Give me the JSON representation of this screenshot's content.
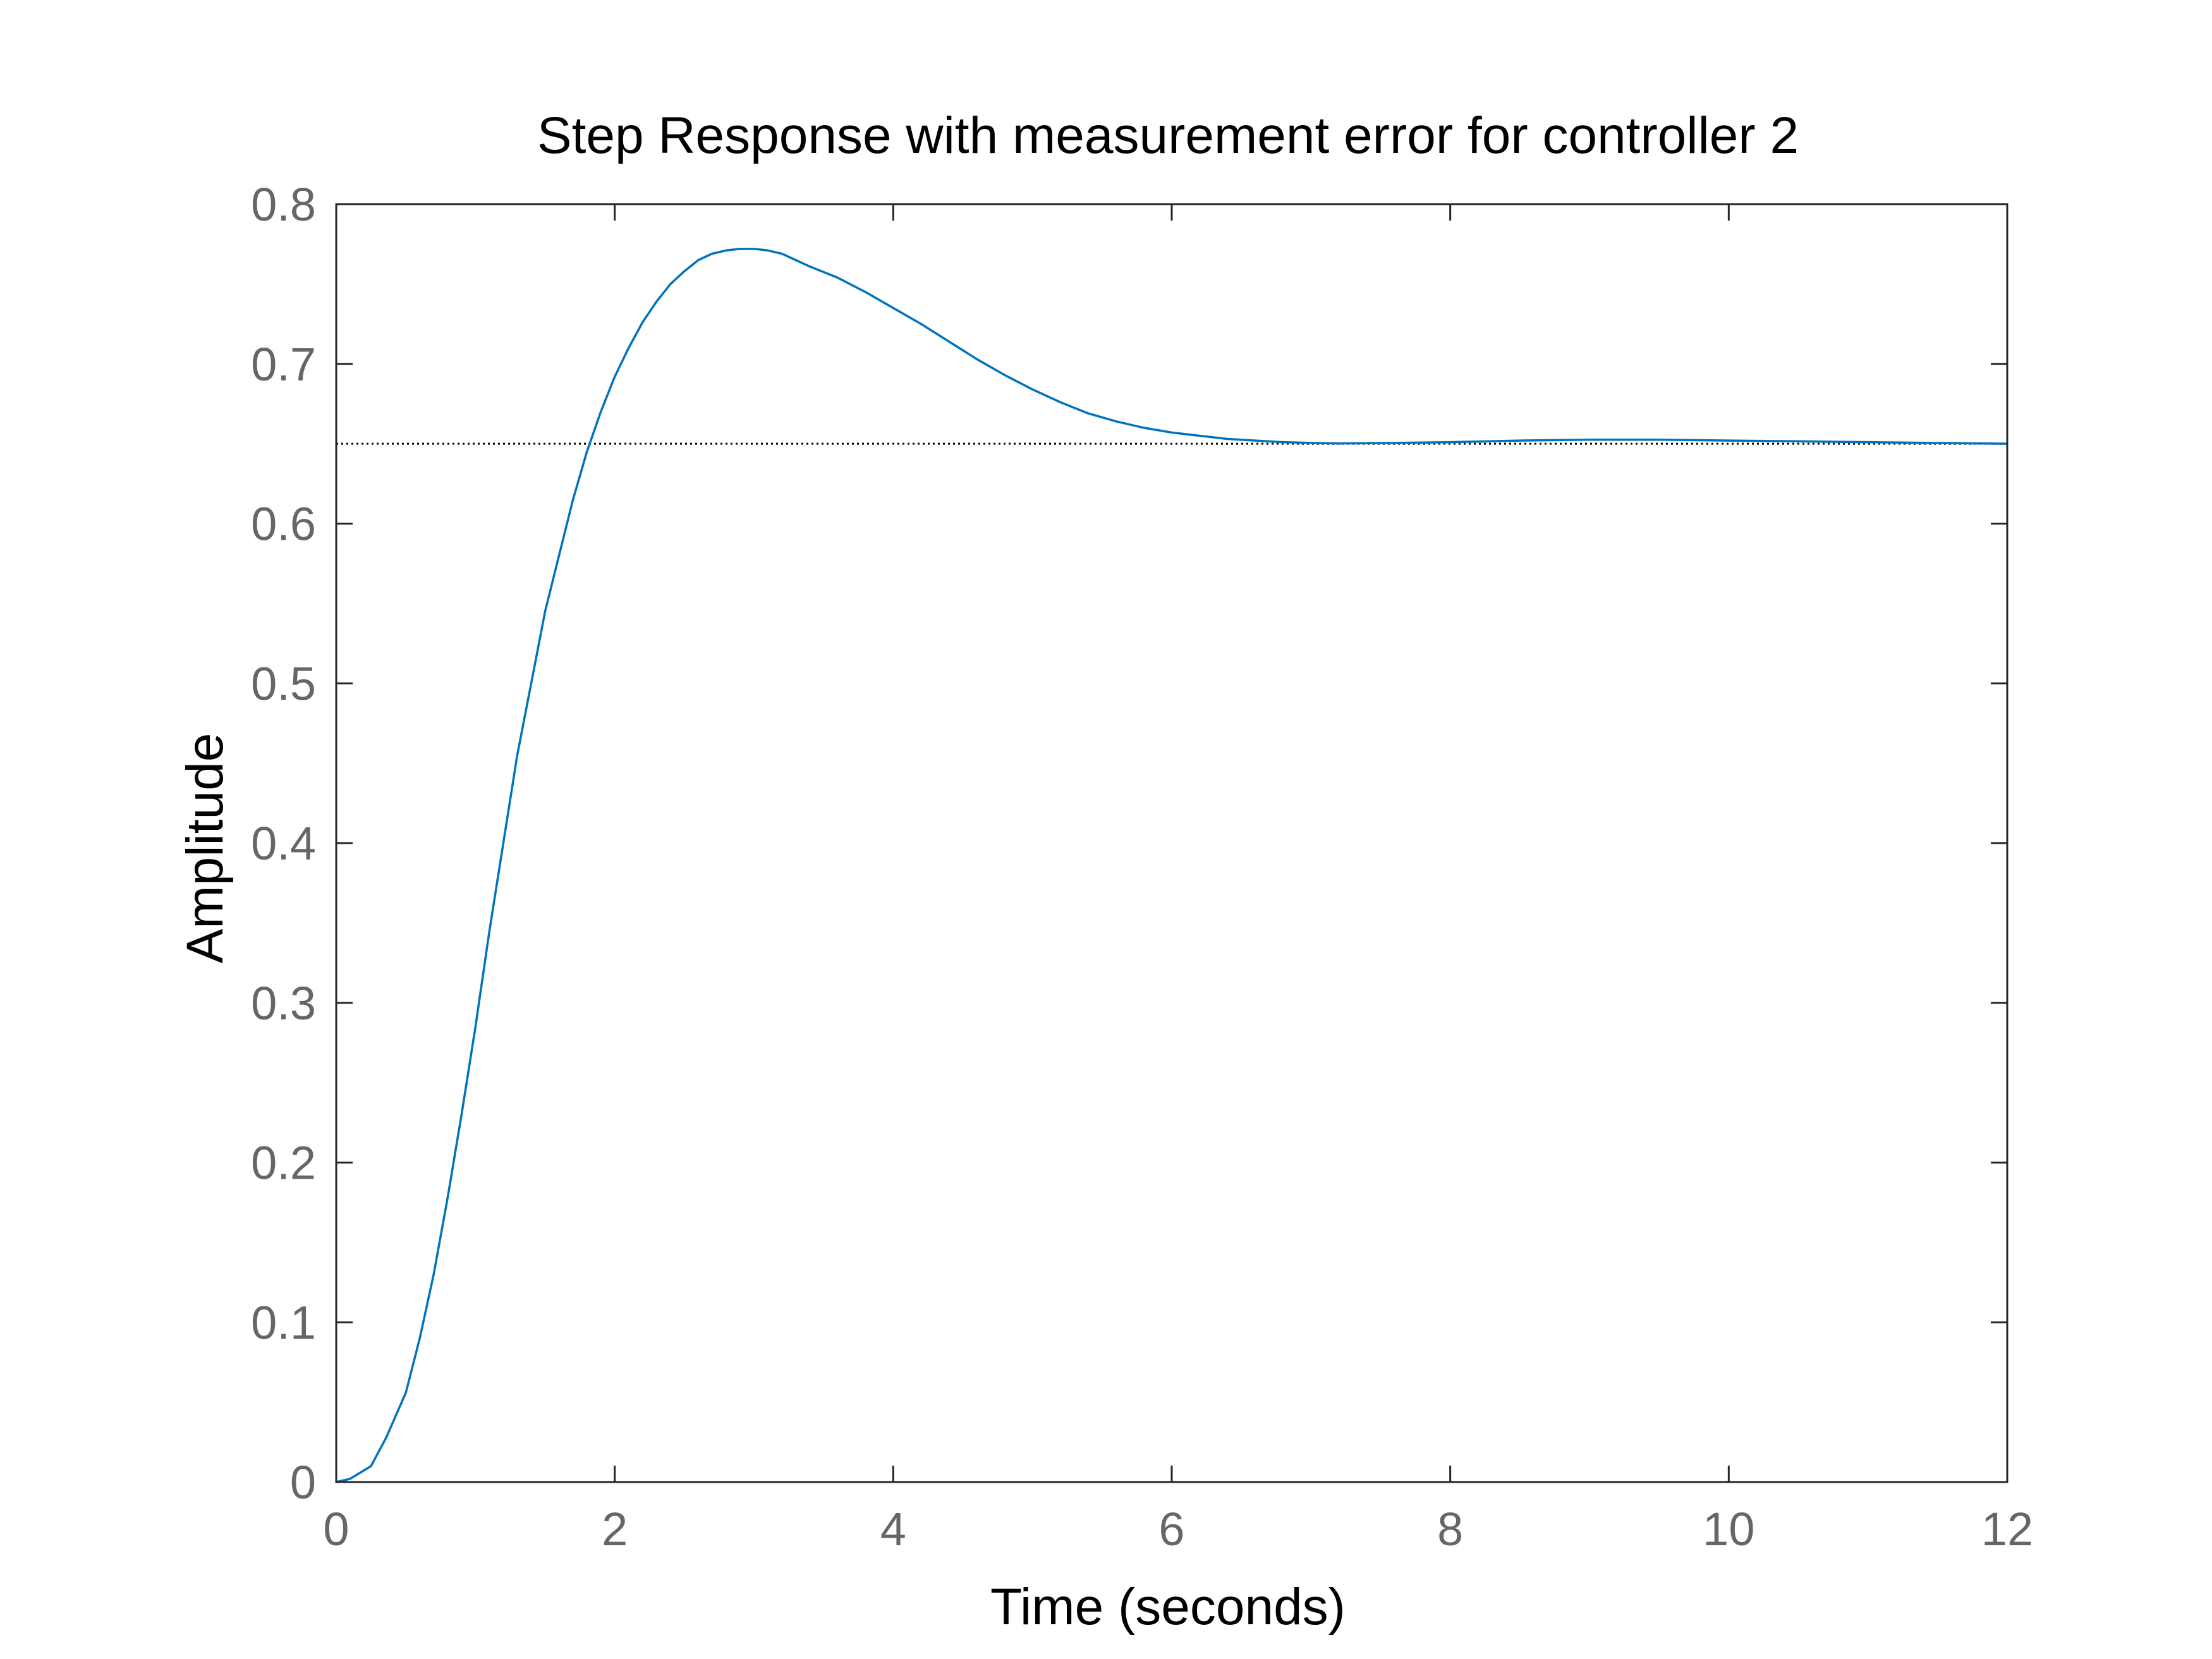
{
  "chart_data": {
    "type": "line",
    "title": "Step Response with measurement error for controller 2",
    "xlabel": "Time (seconds)",
    "ylabel": "Amplitude",
    "xlim": [
      0,
      12
    ],
    "ylim": [
      0,
      0.8
    ],
    "x_ticks": [
      "0",
      "2",
      "4",
      "6",
      "8",
      "10",
      "12"
    ],
    "y_ticks": [
      "0",
      "0.1",
      "0.2",
      "0.3",
      "0.4",
      "0.5",
      "0.6",
      "0.7",
      "0.8"
    ],
    "grid": false,
    "legend": "none",
    "series": [
      {
        "color": "#0072bd",
        "x": [
          0,
          0.1,
          0.25,
          0.36,
          0.5,
          0.6,
          0.7,
          0.8,
          0.9,
          1.0,
          1.1,
          1.2,
          1.3,
          1.4,
          1.5,
          1.6,
          1.7,
          1.8,
          1.9,
          2.0,
          2.1,
          2.2,
          2.3,
          2.4,
          2.5,
          2.6,
          2.7,
          2.8,
          2.9,
          3.0,
          3.1,
          3.2,
          3.3,
          3.4,
          3.6,
          3.8,
          4.0,
          4.2,
          4.4,
          4.6,
          4.8,
          5.0,
          5.2,
          5.4,
          5.6,
          5.8,
          6.0,
          6.2,
          6.4,
          6.6,
          6.8,
          7.0,
          7.2,
          7.6,
          8.0,
          8.5,
          9.0,
          9.5,
          10.0,
          10.5,
          11.0,
          11.5,
          12.0
        ],
        "y": [
          0,
          0.002,
          0.01,
          0.028,
          0.056,
          0.09,
          0.13,
          0.178,
          0.23,
          0.285,
          0.345,
          0.4,
          0.455,
          0.5,
          0.545,
          0.58,
          0.615,
          0.645,
          0.67,
          0.692,
          0.71,
          0.726,
          0.739,
          0.75,
          0.758,
          0.765,
          0.769,
          0.771,
          0.772,
          0.772,
          0.771,
          0.769,
          0.765,
          0.761,
          0.754,
          0.745,
          0.735,
          0.725,
          0.714,
          0.703,
          0.693,
          0.684,
          0.676,
          0.669,
          0.664,
          0.66,
          0.657,
          0.655,
          0.653,
          0.652,
          0.651,
          0.6505,
          0.6502,
          0.6505,
          0.651,
          0.652,
          0.6525,
          0.6525,
          0.652,
          0.6515,
          0.651,
          0.6505,
          0.65
        ]
      }
    ],
    "reference_line": {
      "y": 0.65,
      "style": "dotted",
      "color": "#000000"
    }
  }
}
